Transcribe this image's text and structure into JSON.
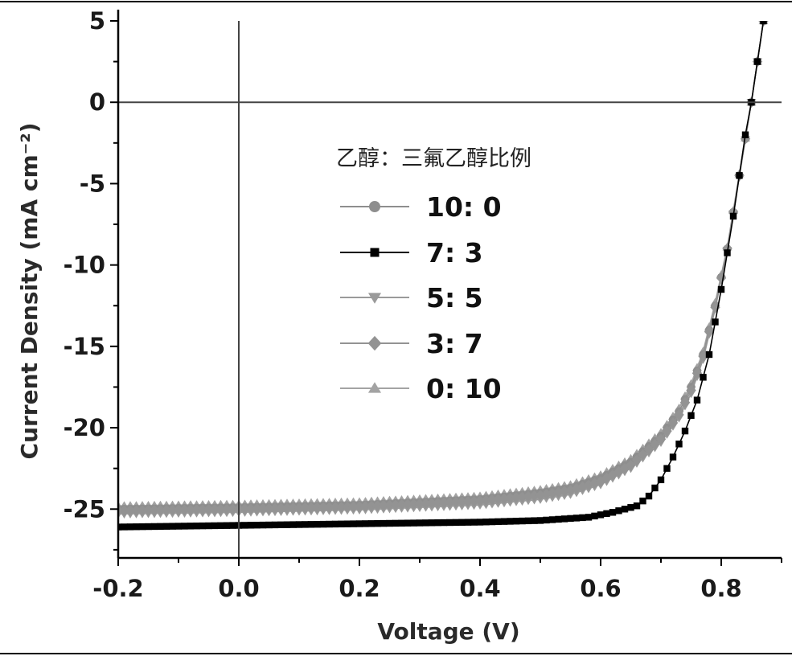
{
  "chart_data": {
    "type": "line",
    "title": "",
    "xlabel": "Voltage (V)",
    "ylabel": "Current Density (mA cm⁻²)",
    "xlim": [
      -0.2,
      0.9
    ],
    "ylim": [
      -28,
      5
    ],
    "x_ticks": [
      "-0.2",
      "0.0",
      "0.2",
      "0.4",
      "0.6",
      "0.8"
    ],
    "x_tick_values": [
      -0.2,
      0.0,
      0.2,
      0.4,
      0.6,
      0.8
    ],
    "y_ticks": [
      "5",
      "0",
      "-5",
      "-10",
      "-15",
      "-20",
      "-25"
    ],
    "y_tick_values": [
      5,
      0,
      -5,
      -10,
      -15,
      -20,
      -25
    ],
    "grid": false,
    "zero_lines": true,
    "legend_title": "乙醇：三氟乙醇比例",
    "legend_position": "center-right",
    "series": [
      {
        "name": "10: 0",
        "marker": "circle",
        "color": "#8e8e8e",
        "curve": [
          [
            -0.2,
            -25.0
          ],
          [
            0.0,
            -24.9
          ],
          [
            0.2,
            -24.75
          ],
          [
            0.4,
            -24.4
          ],
          [
            0.5,
            -24.0
          ],
          [
            0.55,
            -23.7
          ],
          [
            0.6,
            -23.1
          ],
          [
            0.65,
            -22.1
          ],
          [
            0.7,
            -20.5
          ],
          [
            0.73,
            -19.0
          ],
          [
            0.75,
            -17.5
          ],
          [
            0.77,
            -15.5
          ],
          [
            0.79,
            -12.5
          ],
          [
            0.81,
            -9.0
          ],
          [
            0.83,
            -4.5
          ],
          [
            0.85,
            0.0
          ],
          [
            0.87,
            5.0
          ]
        ]
      },
      {
        "name": "7: 3",
        "marker": "square",
        "color": "#000000",
        "curve": [
          [
            -0.2,
            -26.1
          ],
          [
            0.0,
            -26.0
          ],
          [
            0.2,
            -25.9
          ],
          [
            0.4,
            -25.8
          ],
          [
            0.5,
            -25.7
          ],
          [
            0.58,
            -25.5
          ],
          [
            0.62,
            -25.2
          ],
          [
            0.66,
            -24.8
          ],
          [
            0.68,
            -24.2
          ],
          [
            0.7,
            -23.2
          ],
          [
            0.72,
            -21.8
          ],
          [
            0.74,
            -20.2
          ],
          [
            0.76,
            -18.3
          ],
          [
            0.78,
            -15.5
          ],
          [
            0.8,
            -11.5
          ],
          [
            0.82,
            -7.0
          ],
          [
            0.84,
            -2.0
          ],
          [
            0.85,
            0.0
          ],
          [
            0.87,
            5.0
          ]
        ]
      },
      {
        "name": "5: 5",
        "marker": "triangle-down",
        "color": "#9a9a9a",
        "curve": [
          [
            -0.2,
            -25.3
          ],
          [
            0.0,
            -25.2
          ],
          [
            0.2,
            -25.05
          ],
          [
            0.4,
            -24.75
          ],
          [
            0.5,
            -24.4
          ],
          [
            0.55,
            -24.1
          ],
          [
            0.6,
            -23.5
          ],
          [
            0.65,
            -22.5
          ],
          [
            0.7,
            -20.9
          ],
          [
            0.73,
            -19.4
          ],
          [
            0.75,
            -17.9
          ],
          [
            0.77,
            -15.8
          ],
          [
            0.79,
            -12.7
          ],
          [
            0.81,
            -9.1
          ],
          [
            0.83,
            -4.6
          ],
          [
            0.85,
            0.0
          ],
          [
            0.87,
            5.0
          ]
        ]
      },
      {
        "name": "3: 7",
        "marker": "diamond",
        "color": "#939393",
        "curve": [
          [
            -0.2,
            -25.1
          ],
          [
            0.0,
            -25.0
          ],
          [
            0.2,
            -24.85
          ],
          [
            0.4,
            -24.5
          ],
          [
            0.5,
            -24.15
          ],
          [
            0.55,
            -23.85
          ],
          [
            0.6,
            -23.3
          ],
          [
            0.65,
            -22.3
          ],
          [
            0.7,
            -20.7
          ],
          [
            0.73,
            -19.2
          ],
          [
            0.75,
            -17.7
          ],
          [
            0.77,
            -15.6
          ],
          [
            0.79,
            -12.6
          ],
          [
            0.81,
            -9.0
          ],
          [
            0.83,
            -4.5
          ],
          [
            0.85,
            0.0
          ],
          [
            0.87,
            5.0
          ]
        ]
      },
      {
        "name": "0: 10",
        "marker": "triangle-up",
        "color": "#a3a3a3",
        "curve": [
          [
            -0.2,
            -24.8
          ],
          [
            0.0,
            -24.7
          ],
          [
            0.2,
            -24.55
          ],
          [
            0.4,
            -24.2
          ],
          [
            0.5,
            -23.8
          ],
          [
            0.55,
            -23.5
          ],
          [
            0.6,
            -22.9
          ],
          [
            0.65,
            -21.9
          ],
          [
            0.7,
            -20.3
          ],
          [
            0.73,
            -18.8
          ],
          [
            0.75,
            -17.3
          ],
          [
            0.77,
            -15.3
          ],
          [
            0.79,
            -12.3
          ],
          [
            0.81,
            -8.9
          ],
          [
            0.83,
            -4.4
          ],
          [
            0.85,
            0.0
          ],
          [
            0.87,
            5.0
          ]
        ]
      }
    ]
  }
}
